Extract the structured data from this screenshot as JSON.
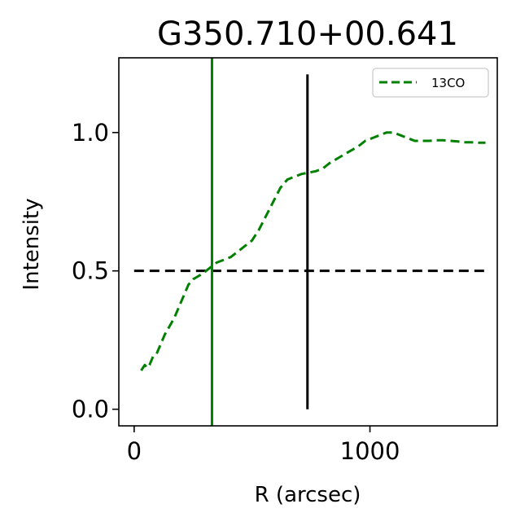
{
  "chart_data": {
    "type": "line",
    "title": "G350.710+00.641",
    "xlabel": "R (arcsec)",
    "ylabel": "Intensity",
    "xlim": [
      -65,
      1540
    ],
    "ylim": [
      -0.06,
      1.27
    ],
    "xticks": [
      0,
      1000
    ],
    "xtick_labels": [
      "0",
      "1000"
    ],
    "yticks": [
      0.0,
      0.5,
      1.0
    ],
    "ytick_labels": [
      "0.0",
      "0.5",
      "1.0"
    ],
    "grid": false,
    "legend": {
      "placement": "top-right",
      "entries": [
        "13CO"
      ]
    },
    "series": [
      {
        "name": "13CO",
        "color": "#008000",
        "style": "dashed",
        "x": [
          30,
          45,
          55,
          65,
          80,
          95,
          110,
          130,
          150,
          170,
          190,
          210,
          230,
          250,
          270,
          290,
          320,
          350,
          380,
          410,
          440,
          470,
          500,
          530,
          560,
          590,
          620,
          650,
          680,
          710,
          740,
          770,
          800,
          830,
          860,
          890,
          920,
          950,
          980,
          1010,
          1040,
          1070,
          1100,
          1130,
          1160,
          1190,
          1220,
          1250,
          1280,
          1310,
          1340,
          1370,
          1400,
          1430,
          1460,
          1490
        ],
        "values": [
          0.14,
          0.16,
          0.15,
          0.16,
          0.19,
          0.2,
          0.23,
          0.27,
          0.3,
          0.33,
          0.37,
          0.41,
          0.45,
          0.47,
          0.48,
          0.49,
          0.51,
          0.53,
          0.54,
          0.55,
          0.57,
          0.59,
          0.61,
          0.65,
          0.7,
          0.75,
          0.8,
          0.83,
          0.84,
          0.85,
          0.855,
          0.86,
          0.87,
          0.89,
          0.905,
          0.92,
          0.935,
          0.95,
          0.97,
          0.98,
          0.99,
          1.0,
          1.0,
          0.99,
          0.98,
          0.97,
          0.97,
          0.97,
          0.972,
          0.972,
          0.97,
          0.968,
          0.965,
          0.965,
          0.963,
          0.963
        ]
      }
    ],
    "reference_lines": [
      {
        "orientation": "horizontal",
        "y": 0.5,
        "x_range": [
          0,
          1490
        ],
        "color": "#000000",
        "style": "dashed"
      },
      {
        "orientation": "vertical",
        "x": 330,
        "color": "#008000",
        "style": "solid",
        "full_height": true
      },
      {
        "orientation": "vertical",
        "x": 735,
        "y_range": [
          0.0,
          1.21
        ],
        "color": "#000000",
        "style": "solid"
      }
    ]
  }
}
